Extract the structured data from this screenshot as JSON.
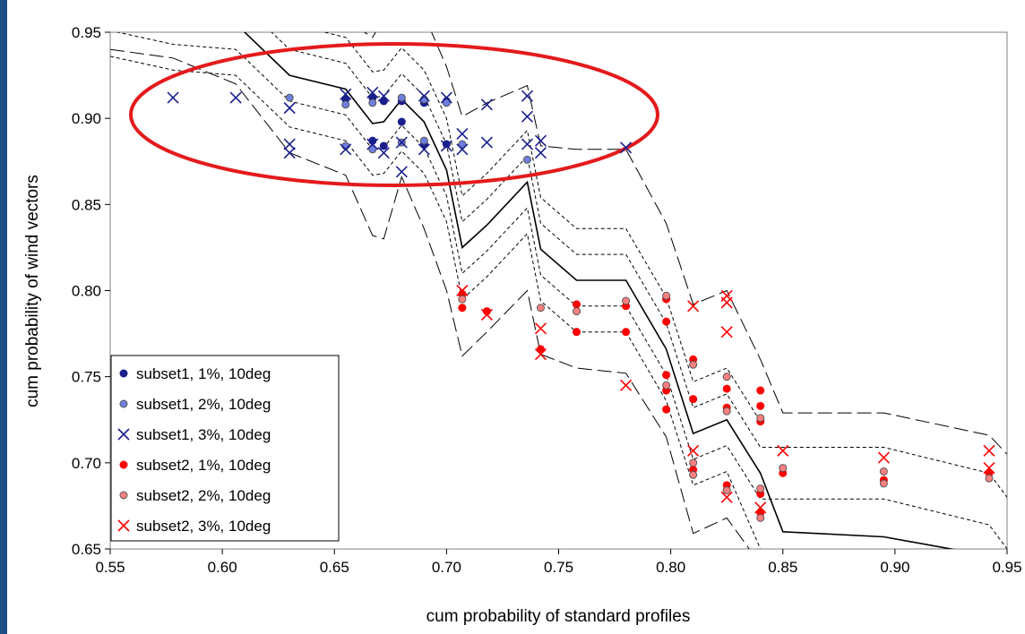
{
  "colors": {
    "subset1": "#1a1f8c",
    "subset1_light": "#6f7fe0",
    "subset2": "#ff0000",
    "subset2_light": "#ff8080",
    "ellipse": "#e41a1c",
    "frame_edge": "#1f4e86"
  },
  "chart_data": {
    "type": "scatter",
    "title": "",
    "xlabel": "cum probability of standard profiles",
    "ylabel": "cum probability of wind vectors",
    "xlim": [
      0.55,
      0.95
    ],
    "ylim": [
      0.65,
      0.95
    ],
    "xticks": [
      "0.55",
      "0.60",
      "0.65",
      "0.70",
      "0.75",
      "0.80",
      "0.85",
      "0.90",
      "0.95"
    ],
    "yticks": [
      "0.65",
      "0.70",
      "0.75",
      "0.80",
      "0.85",
      "0.90",
      "0.95"
    ],
    "grid": false,
    "legend_position": "bottom-left",
    "series": [
      {
        "name": "subset1, 1%, 10deg",
        "marker": "dot",
        "color": "#1a1f8c",
        "points": [
          [
            0.655,
            0.911
          ],
          [
            0.667,
            0.912
          ],
          [
            0.672,
            0.91
          ],
          [
            0.68,
            0.91
          ],
          [
            0.68,
            0.898
          ],
          [
            0.69,
            0.909
          ],
          [
            0.7,
            0.91
          ],
          [
            0.667,
            0.887
          ],
          [
            0.672,
            0.884
          ],
          [
            0.69,
            0.885
          ],
          [
            0.7,
            0.885
          ]
        ]
      },
      {
        "name": "subset1, 2%, 10deg",
        "marker": "ring",
        "color": "#6f7fe0",
        "points": [
          [
            0.63,
            0.912
          ],
          [
            0.655,
            0.908
          ],
          [
            0.667,
            0.909
          ],
          [
            0.68,
            0.912
          ],
          [
            0.69,
            0.911
          ],
          [
            0.7,
            0.909
          ],
          [
            0.655,
            0.884
          ],
          [
            0.667,
            0.882
          ],
          [
            0.68,
            0.886
          ],
          [
            0.69,
            0.887
          ],
          [
            0.707,
            0.885
          ],
          [
            0.736,
            0.876
          ]
        ]
      },
      {
        "name": "subset1, 3%, 10deg",
        "marker": "x",
        "color": "#1a1f8c",
        "points": [
          [
            0.578,
            0.912
          ],
          [
            0.606,
            0.912
          ],
          [
            0.63,
            0.906
          ],
          [
            0.63,
            0.885
          ],
          [
            0.63,
            0.88
          ],
          [
            0.655,
            0.914
          ],
          [
            0.655,
            0.882
          ],
          [
            0.667,
            0.915
          ],
          [
            0.667,
            0.885
          ],
          [
            0.672,
            0.913
          ],
          [
            0.672,
            0.88
          ],
          [
            0.68,
            0.869
          ],
          [
            0.68,
            0.886
          ],
          [
            0.69,
            0.913
          ],
          [
            0.69,
            0.882
          ],
          [
            0.7,
            0.912
          ],
          [
            0.7,
            0.884
          ],
          [
            0.707,
            0.891
          ],
          [
            0.707,
            0.882
          ],
          [
            0.718,
            0.908
          ],
          [
            0.718,
            0.886
          ],
          [
            0.736,
            0.913
          ],
          [
            0.736,
            0.901
          ],
          [
            0.736,
            0.885
          ],
          [
            0.742,
            0.887
          ],
          [
            0.742,
            0.88
          ],
          [
            0.78,
            0.883
          ]
        ]
      },
      {
        "name": "subset2, 1%, 10deg",
        "marker": "dot",
        "color": "#ff0000",
        "points": [
          [
            0.707,
            0.798
          ],
          [
            0.707,
            0.79
          ],
          [
            0.718,
            0.788
          ],
          [
            0.742,
            0.766
          ],
          [
            0.758,
            0.792
          ],
          [
            0.758,
            0.776
          ],
          [
            0.78,
            0.791
          ],
          [
            0.78,
            0.776
          ],
          [
            0.798,
            0.795
          ],
          [
            0.798,
            0.782
          ],
          [
            0.798,
            0.751
          ],
          [
            0.798,
            0.742
          ],
          [
            0.798,
            0.731
          ],
          [
            0.81,
            0.76
          ],
          [
            0.81,
            0.737
          ],
          [
            0.81,
            0.696
          ],
          [
            0.825,
            0.743
          ],
          [
            0.825,
            0.732
          ],
          [
            0.825,
            0.687
          ],
          [
            0.84,
            0.742
          ],
          [
            0.84,
            0.733
          ],
          [
            0.84,
            0.724
          ],
          [
            0.84,
            0.682
          ],
          [
            0.84,
            0.671
          ],
          [
            0.85,
            0.694
          ],
          [
            0.895,
            0.69
          ],
          [
            0.942,
            0.694
          ]
        ]
      },
      {
        "name": "subset2, 2%, 10deg",
        "marker": "ring",
        "color": "#ff8080",
        "points": [
          [
            0.707,
            0.795
          ],
          [
            0.742,
            0.79
          ],
          [
            0.758,
            0.788
          ],
          [
            0.78,
            0.794
          ],
          [
            0.798,
            0.797
          ],
          [
            0.798,
            0.745
          ],
          [
            0.81,
            0.757
          ],
          [
            0.81,
            0.7
          ],
          [
            0.81,
            0.693
          ],
          [
            0.825,
            0.75
          ],
          [
            0.825,
            0.73
          ],
          [
            0.825,
            0.684
          ],
          [
            0.84,
            0.726
          ],
          [
            0.84,
            0.685
          ],
          [
            0.84,
            0.668
          ],
          [
            0.85,
            0.697
          ],
          [
            0.895,
            0.695
          ],
          [
            0.895,
            0.688
          ],
          [
            0.942,
            0.691
          ]
        ]
      },
      {
        "name": "subset2, 3%, 10deg",
        "marker": "x",
        "color": "#ff0000",
        "points": [
          [
            0.707,
            0.8
          ],
          [
            0.718,
            0.786
          ],
          [
            0.742,
            0.778
          ],
          [
            0.742,
            0.763
          ],
          [
            0.78,
            0.745
          ],
          [
            0.81,
            0.791
          ],
          [
            0.81,
            0.707
          ],
          [
            0.825,
            0.797
          ],
          [
            0.825,
            0.793
          ],
          [
            0.825,
            0.776
          ],
          [
            0.825,
            0.68
          ],
          [
            0.84,
            0.674
          ],
          [
            0.85,
            0.707
          ],
          [
            0.895,
            0.703
          ],
          [
            0.942,
            0.707
          ],
          [
            0.942,
            0.697
          ]
        ]
      }
    ],
    "reference_lines": [
      {
        "style": "solid",
        "points": [
          [
            0.55,
            0.966
          ],
          [
            0.578,
            0.958
          ],
          [
            0.606,
            0.955
          ],
          [
            0.63,
            0.925
          ],
          [
            0.655,
            0.917
          ],
          [
            0.667,
            0.897
          ],
          [
            0.672,
            0.898
          ],
          [
            0.68,
            0.911
          ],
          [
            0.69,
            0.898
          ],
          [
            0.7,
            0.87
          ],
          [
            0.707,
            0.825
          ],
          [
            0.718,
            0.838
          ],
          [
            0.736,
            0.863
          ],
          [
            0.742,
            0.824
          ],
          [
            0.758,
            0.806
          ],
          [
            0.78,
            0.806
          ],
          [
            0.798,
            0.766
          ],
          [
            0.81,
            0.717
          ],
          [
            0.825,
            0.725
          ],
          [
            0.84,
            0.694
          ],
          [
            0.85,
            0.66
          ],
          [
            0.895,
            0.657
          ],
          [
            0.942,
            0.646
          ]
        ]
      },
      {
        "style": "short-dash",
        "points": [
          [
            0.55,
            0.951
          ],
          [
            0.578,
            0.943
          ],
          [
            0.606,
            0.94
          ],
          [
            0.63,
            0.91
          ],
          [
            0.655,
            0.902
          ],
          [
            0.667,
            0.882
          ],
          [
            0.672,
            0.883
          ],
          [
            0.68,
            0.896
          ],
          [
            0.69,
            0.883
          ],
          [
            0.7,
            0.855
          ],
          [
            0.707,
            0.81
          ],
          [
            0.718,
            0.823
          ],
          [
            0.736,
            0.848
          ],
          [
            0.742,
            0.809
          ],
          [
            0.758,
            0.791
          ],
          [
            0.78,
            0.791
          ],
          [
            0.798,
            0.751
          ],
          [
            0.81,
            0.702
          ],
          [
            0.825,
            0.71
          ],
          [
            0.84,
            0.679
          ],
          [
            0.85,
            0.679
          ],
          [
            0.895,
            0.679
          ],
          [
            0.942,
            0.664
          ],
          [
            0.95,
            0.65
          ]
        ]
      },
      {
        "style": "short-dash",
        "points": [
          [
            0.55,
            0.981
          ],
          [
            0.578,
            0.973
          ],
          [
            0.606,
            0.97
          ],
          [
            0.63,
            0.94
          ],
          [
            0.655,
            0.932
          ],
          [
            0.667,
            0.912
          ],
          [
            0.672,
            0.913
          ],
          [
            0.68,
            0.926
          ],
          [
            0.69,
            0.913
          ],
          [
            0.7,
            0.885
          ],
          [
            0.707,
            0.84
          ],
          [
            0.718,
            0.853
          ],
          [
            0.736,
            0.878
          ],
          [
            0.742,
            0.839
          ],
          [
            0.758,
            0.821
          ],
          [
            0.78,
            0.821
          ],
          [
            0.798,
            0.781
          ],
          [
            0.81,
            0.732
          ],
          [
            0.825,
            0.74
          ],
          [
            0.84,
            0.709
          ],
          [
            0.85,
            0.709
          ],
          [
            0.895,
            0.709
          ],
          [
            0.942,
            0.694
          ],
          [
            0.95,
            0.68
          ]
        ]
      },
      {
        "style": "short-dash",
        "points": [
          [
            0.55,
            0.936
          ],
          [
            0.578,
            0.928
          ],
          [
            0.606,
            0.925
          ],
          [
            0.63,
            0.895
          ],
          [
            0.655,
            0.887
          ],
          [
            0.667,
            0.867
          ],
          [
            0.672,
            0.868
          ],
          [
            0.68,
            0.881
          ],
          [
            0.69,
            0.868
          ],
          [
            0.7,
            0.84
          ],
          [
            0.707,
            0.795
          ],
          [
            0.718,
            0.808
          ],
          [
            0.736,
            0.833
          ],
          [
            0.742,
            0.794
          ],
          [
            0.758,
            0.776
          ],
          [
            0.78,
            0.776
          ],
          [
            0.798,
            0.736
          ],
          [
            0.81,
            0.687
          ],
          [
            0.825,
            0.695
          ],
          [
            0.84,
            0.65
          ]
        ]
      },
      {
        "style": "short-dash",
        "points": [
          [
            0.55,
            0.996
          ],
          [
            0.578,
            0.988
          ],
          [
            0.606,
            0.985
          ],
          [
            0.63,
            0.955
          ],
          [
            0.655,
            0.947
          ],
          [
            0.667,
            0.927
          ],
          [
            0.672,
            0.928
          ],
          [
            0.68,
            0.941
          ],
          [
            0.69,
            0.928
          ],
          [
            0.7,
            0.9
          ],
          [
            0.707,
            0.855
          ],
          [
            0.718,
            0.868
          ],
          [
            0.736,
            0.893
          ],
          [
            0.742,
            0.854
          ],
          [
            0.758,
            0.836
          ],
          [
            0.78,
            0.836
          ],
          [
            0.798,
            0.796
          ],
          [
            0.81,
            0.747
          ],
          [
            0.825,
            0.755
          ],
          [
            0.84,
            0.724
          ]
        ]
      },
      {
        "style": "long-dash",
        "points": [
          [
            0.55,
            0.94
          ],
          [
            0.578,
            0.935
          ],
          [
            0.606,
            0.92
          ],
          [
            0.63,
            0.88
          ],
          [
            0.655,
            0.867
          ],
          [
            0.667,
            0.832
          ],
          [
            0.672,
            0.83
          ],
          [
            0.68,
            0.866
          ],
          [
            0.69,
            0.836
          ],
          [
            0.7,
            0.8
          ],
          [
            0.707,
            0.762
          ],
          [
            0.718,
            0.776
          ],
          [
            0.736,
            0.8
          ],
          [
            0.742,
            0.763
          ],
          [
            0.758,
            0.755
          ],
          [
            0.78,
            0.752
          ],
          [
            0.798,
            0.715
          ],
          [
            0.81,
            0.659
          ],
          [
            0.825,
            0.668
          ],
          [
            0.835,
            0.65
          ]
        ]
      },
      {
        "style": "long-dash",
        "points": [
          [
            0.55,
            0.99
          ],
          [
            0.578,
            0.982
          ],
          [
            0.606,
            0.98
          ],
          [
            0.63,
            0.965
          ],
          [
            0.655,
            0.957
          ],
          [
            0.667,
            0.947
          ],
          [
            0.672,
            0.958
          ],
          [
            0.68,
            0.955
          ],
          [
            0.69,
            0.96
          ],
          [
            0.7,
            0.93
          ],
          [
            0.707,
            0.901
          ],
          [
            0.718,
            0.909
          ],
          [
            0.736,
            0.919
          ],
          [
            0.742,
            0.884
          ],
          [
            0.758,
            0.882
          ],
          [
            0.78,
            0.882
          ],
          [
            0.798,
            0.839
          ],
          [
            0.81,
            0.792
          ],
          [
            0.825,
            0.8
          ],
          [
            0.84,
            0.76
          ],
          [
            0.85,
            0.729
          ],
          [
            0.895,
            0.729
          ],
          [
            0.942,
            0.716
          ],
          [
            0.95,
            0.705
          ]
        ]
      }
    ]
  }
}
